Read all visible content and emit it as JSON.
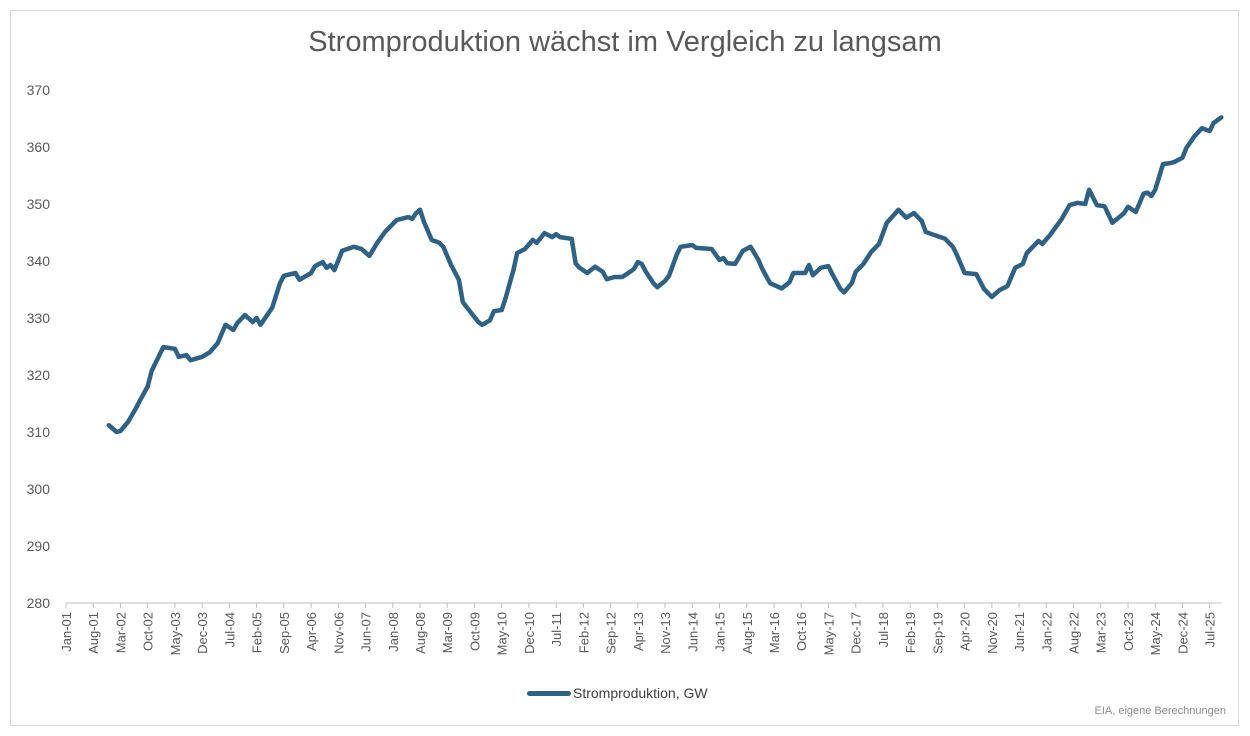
{
  "chart_data": {
    "type": "line",
    "title": "Stromproduktion wächst im Vergleich zu langsam",
    "xlabel": "",
    "ylabel": "",
    "ylim": [
      280,
      370
    ],
    "yticks": [
      280,
      290,
      300,
      310,
      320,
      330,
      340,
      350,
      360,
      370
    ],
    "xlim": [
      "2001-01",
      "2025-10"
    ],
    "xtick_labels": [
      "Jan-01",
      "Aug-01",
      "Mar-02",
      "Oct-02",
      "May-03",
      "Dec-03",
      "Jul-04",
      "Feb-05",
      "Sep-05",
      "Apr-06",
      "Nov-06",
      "Jun-07",
      "Jan-08",
      "Aug-08",
      "Mar-09",
      "Oct-09",
      "May-10",
      "Dec-10",
      "Jul-11",
      "Feb-12",
      "Sep-12",
      "Apr-13",
      "Nov-13",
      "Jun-14",
      "Jan-15",
      "Aug-15",
      "Mar-16",
      "Oct-16",
      "May-17",
      "Dec-17",
      "Jul-18",
      "Feb-19",
      "Sep-19",
      "Apr-20",
      "Nov-20",
      "Jun-21",
      "Jan-22",
      "Aug-22",
      "Mar-23",
      "Oct-23",
      "May-24",
      "Dec-24",
      "Jul-25"
    ],
    "grid": false,
    "legend": "bottom",
    "series": [
      {
        "name": "Stromproduktion, GW",
        "color": "#2e6183",
        "x": [
          "2001-12",
          "2002-02",
          "2002-03",
          "2002-05",
          "2002-07",
          "2002-08",
          "2002-10",
          "2002-11",
          "2003-02",
          "2003-05",
          "2003-06",
          "2003-08",
          "2003-09",
          "2003-12",
          "2004-02",
          "2004-04",
          "2004-06",
          "2004-08",
          "2004-09",
          "2004-11",
          "2005-01",
          "2005-02",
          "2005-03",
          "2005-06",
          "2005-08",
          "2005-09",
          "2005-12",
          "2006-01",
          "2006-04",
          "2006-05",
          "2006-07",
          "2006-08",
          "2006-09",
          "2006-10",
          "2006-12",
          "2007-03",
          "2007-05",
          "2007-07",
          "2007-09",
          "2007-11",
          "2008-02",
          "2008-05",
          "2008-06",
          "2008-07",
          "2008-08",
          "2008-09",
          "2008-11",
          "2009-01",
          "2009-02",
          "2009-04",
          "2009-06",
          "2009-07",
          "2009-08",
          "2009-11",
          "2009-12",
          "2010-02",
          "2010-03",
          "2010-05",
          "2010-06",
          "2010-08",
          "2010-09",
          "2010-11",
          "2011-01",
          "2011-02",
          "2011-04",
          "2011-06",
          "2011-07",
          "2011-08",
          "2011-11",
          "2011-12",
          "2012-01",
          "2012-03",
          "2012-05",
          "2012-07",
          "2012-08",
          "2012-10",
          "2012-12",
          "2013-02",
          "2013-03",
          "2013-04",
          "2013-05",
          "2013-06",
          "2013-08",
          "2013-09",
          "2013-11",
          "2013-12",
          "2014-02",
          "2014-03",
          "2014-05",
          "2014-06",
          "2014-07",
          "2014-11",
          "2015-01",
          "2015-02",
          "2015-03",
          "2015-05",
          "2015-07",
          "2015-09",
          "2015-11",
          "2015-12",
          "2016-02",
          "2016-05",
          "2016-07",
          "2016-08",
          "2016-11",
          "2016-12",
          "2017-01",
          "2017-03",
          "2017-05",
          "2017-06",
          "2017-08",
          "2017-09",
          "2017-11",
          "2017-12",
          "2018-02",
          "2018-04",
          "2018-06",
          "2018-08",
          "2018-11",
          "2019-01",
          "2019-03",
          "2019-05",
          "2019-06",
          "2019-08",
          "2019-11",
          "2020-01",
          "2020-02",
          "2020-04",
          "2020-07",
          "2020-09",
          "2020-11",
          "2021-01",
          "2021-03",
          "2021-05",
          "2021-07",
          "2021-08",
          "2021-11",
          "2021-12",
          "2022-02",
          "2022-05",
          "2022-07",
          "2022-09",
          "2022-11",
          "2022-12",
          "2023-02",
          "2023-04",
          "2023-06",
          "2023-09",
          "2023-10",
          "2023-12",
          "2024-02",
          "2024-03",
          "2024-04",
          "2024-05",
          "2024-07",
          "2024-09",
          "2024-10",
          "2024-12",
          "2025-01",
          "2025-03",
          "2025-05",
          "2025-07",
          "2025-08",
          "2025-10"
        ],
        "values": [
          311.2,
          310.0,
          310.2,
          311.8,
          314.2,
          315.5,
          318.0,
          320.7,
          324.9,
          324.6,
          323.2,
          323.5,
          322.6,
          323.2,
          324.0,
          325.6,
          328.8,
          327.9,
          329.1,
          330.5,
          329.3,
          330.0,
          328.8,
          331.8,
          336.1,
          337.4,
          337.9,
          336.7,
          337.9,
          339.1,
          339.8,
          338.8,
          339.3,
          338.4,
          341.8,
          342.5,
          342.1,
          340.9,
          343.2,
          345.1,
          347.2,
          347.7,
          347.4,
          348.4,
          349.0,
          346.9,
          343.7,
          343.2,
          342.5,
          339.3,
          336.7,
          332.8,
          331.9,
          329.3,
          328.8,
          329.6,
          331.2,
          331.4,
          333.5,
          338.4,
          341.4,
          342.1,
          343.7,
          343.2,
          344.9,
          344.2,
          344.7,
          344.2,
          343.9,
          339.6,
          338.8,
          337.9,
          339.0,
          338.1,
          336.8,
          337.2,
          337.2,
          338.1,
          338.6,
          339.8,
          339.5,
          338.2,
          336.1,
          335.4,
          336.5,
          337.4,
          341.1,
          342.5,
          342.7,
          342.8,
          342.3,
          342.1,
          340.2,
          340.5,
          339.6,
          339.5,
          341.8,
          342.5,
          340.2,
          338.6,
          336.1,
          335.2,
          336.3,
          337.9,
          337.9,
          339.3,
          337.5,
          338.8,
          339.1,
          337.7,
          335.2,
          334.5,
          336.1,
          338.1,
          339.5,
          341.6,
          343.0,
          346.7,
          349.0,
          347.6,
          348.4,
          347.0,
          345.1,
          344.6,
          343.9,
          342.5,
          341.1,
          337.9,
          337.7,
          335.1,
          333.7,
          334.9,
          335.6,
          338.8,
          339.5,
          341.4,
          343.5,
          343.0,
          344.6,
          347.4,
          349.8,
          350.2,
          350.0,
          352.5,
          349.8,
          349.6,
          346.7,
          348.4,
          349.5,
          348.6,
          351.8,
          352.0,
          351.4,
          352.5,
          357.0,
          357.2,
          357.4,
          358.1,
          359.8,
          361.8,
          363.3,
          362.8,
          364.2,
          365.2
        ]
      }
    ],
    "source": "EIA, eigene Berechnungen"
  }
}
